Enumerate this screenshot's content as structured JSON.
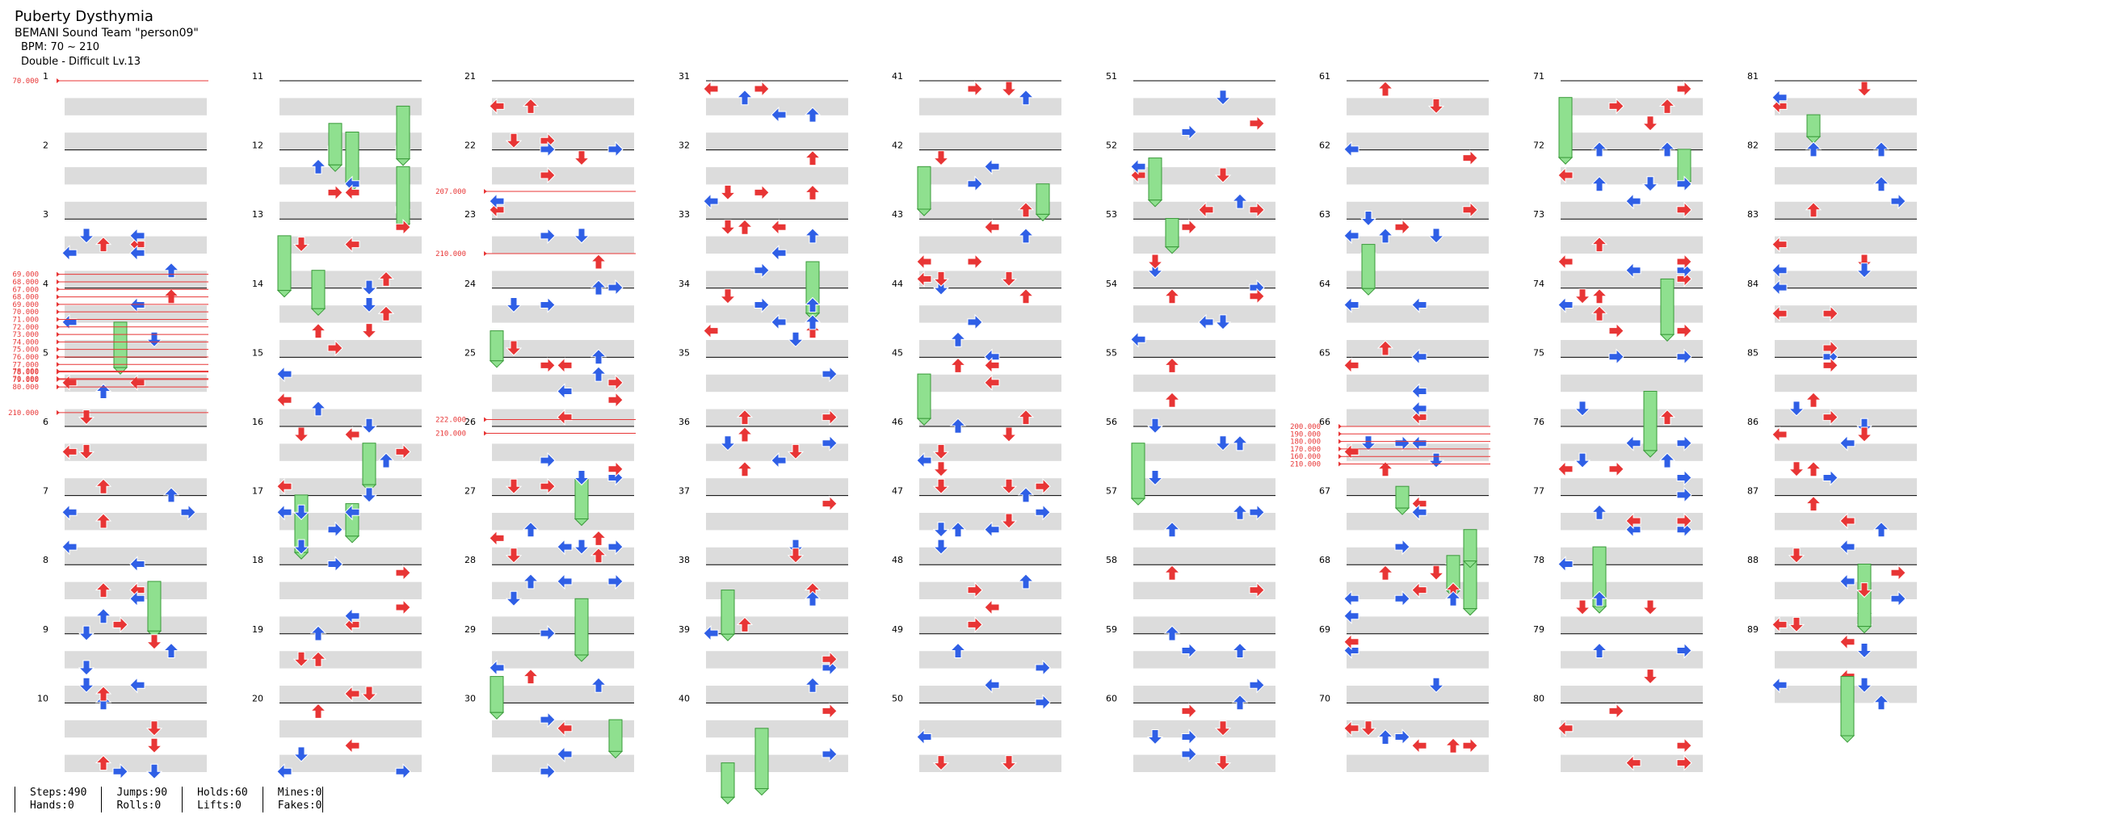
{
  "song": {
    "title": "Puberty Dysthymia",
    "artist": "BEMANI Sound Team \"person09\"",
    "bpm": "BPM: 70 ~ 210",
    "difficulty": "Double - Difficult  Lv.13"
  },
  "chart_data": {
    "type": "stepchart",
    "measures": 89,
    "measures_per_column": 10,
    "arrow_colors": {
      "quarter": "#e83535",
      "eighth": "#2f5fe6",
      "hold": "#8fe08f"
    },
    "bpm_changes": [
      {
        "measure": 1,
        "label": "70.000"
      },
      {
        "measure": 3.8,
        "labels": [
          "69.000",
          "68.000",
          "67.000",
          "68.000",
          "69.000",
          "70.000",
          "71.000",
          "72.000",
          "73.000",
          "74.000",
          "75.000",
          "76.000",
          "77.000",
          "78.000",
          "79.000",
          "80.000"
        ]
      },
      {
        "measure": 5.2,
        "labels": [
          "78.000",
          "70.000"
        ]
      },
      {
        "measure": 5.8,
        "label": "210.000"
      },
      {
        "measure": 22.6,
        "label": "207.000"
      },
      {
        "measure": 23.5,
        "label": "210.000"
      },
      {
        "measure": 25.9,
        "label": "222.000"
      },
      {
        "measure": 26.1,
        "label": "210.000"
      },
      {
        "measure": 66,
        "labels": [
          "200.000",
          "190.000",
          "180.000",
          "170.000",
          "160.000",
          "210.000"
        ]
      }
    ]
  },
  "stats": {
    "steps": "Steps:490",
    "hands": "Hands:0",
    "jumps": "Jumps:90",
    "rolls": "Rolls:0",
    "holds": "Holds:60",
    "lifts": "Lifts:0",
    "mines": "Mines:0",
    "fakes": "Fakes:0"
  }
}
